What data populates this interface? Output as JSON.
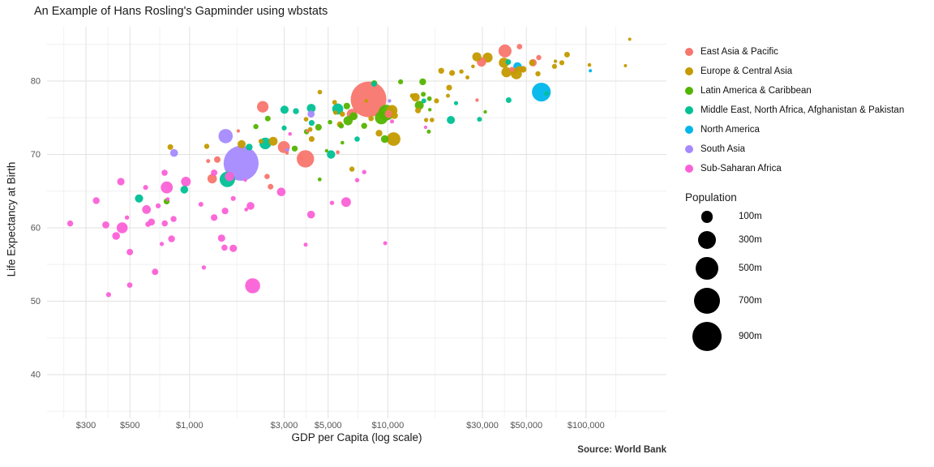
{
  "source": "Source: World Bank",
  "chart_data": {
    "type": "scatter",
    "title": "An Example of Hans Rosling's Gapminder using wbstats",
    "xlabel": "GDP per Capita (log scale)",
    "ylabel": "Life Expectancy at Birth",
    "x_scale": "log10",
    "x_range": [
      195,
      250000
    ],
    "y_range": [
      34,
      87
    ],
    "grid": "on",
    "legend_position": "right",
    "x_ticks": [
      {
        "value": 300,
        "label": "$300"
      },
      {
        "value": 500,
        "label": "$500"
      },
      {
        "value": 1000,
        "label": "$1,000"
      },
      {
        "value": 3000,
        "label": "$3,000"
      },
      {
        "value": 5000,
        "label": "$5,000"
      },
      {
        "value": 10000,
        "label": "$10,000"
      },
      {
        "value": 30000,
        "label": "$30,000"
      },
      {
        "value": 50000,
        "label": "$50,000"
      },
      {
        "value": 100000,
        "label": "$100,000"
      }
    ],
    "y_ticks": [
      {
        "value": 40,
        "label": "40"
      },
      {
        "value": 50,
        "label": "50"
      },
      {
        "value": 60,
        "label": "60"
      },
      {
        "value": 70,
        "label": "70"
      },
      {
        "value": 80,
        "label": "80"
      }
    ],
    "x_minor": [
      232,
      387,
      707,
      1732,
      3873,
      7071,
      17321,
      38730,
      70711,
      141254
    ],
    "y_minor": [
      35,
      45,
      55,
      65,
      75,
      85
    ],
    "regions": [
      {
        "label": "East Asia & Pacific",
        "color": "#F8766D"
      },
      {
        "label": "Europe & Central Asia",
        "color": "#C49A00"
      },
      {
        "label": "Latin America & Caribbean",
        "color": "#53B400"
      },
      {
        "label": "Middle East, North Africa, Afghanistan & Pakistan",
        "color": "#00C094"
      },
      {
        "label": "North America",
        "color": "#00B6EB"
      },
      {
        "label": "South Asia",
        "color": "#A58AFF"
      },
      {
        "label": "Sub-Saharan Africa",
        "color": "#FB61D7"
      }
    ],
    "size_legend": {
      "title": "Population",
      "entries": [
        {
          "value": 100,
          "label": "100m"
        },
        {
          "value": 300,
          "label": "300m"
        },
        {
          "value": 500,
          "label": "500m"
        },
        {
          "value": 700,
          "label": "700m"
        },
        {
          "value": 900,
          "label": "900m"
        }
      ]
    },
    "point_format": [
      "gdp_per_capita_usd",
      "life_expectancy_years",
      "population_millions",
      "region_index"
    ],
    "points": [
      [
        8000,
        77.5,
        1390,
        0
      ],
      [
        39000,
        84.1,
        127,
        0
      ],
      [
        3840,
        69.4,
        264,
        0
      ],
      [
        29700,
        82.6,
        51,
        0
      ],
      [
        2990,
        71,
        105,
        0
      ],
      [
        2340,
        76.5,
        95,
        0
      ],
      [
        6590,
        75.5,
        69,
        0
      ],
      [
        1300,
        66.7,
        53,
        0
      ],
      [
        10100,
        75.5,
        31,
        0
      ],
      [
        54000,
        82.5,
        24.6,
        0
      ],
      [
        57700,
        83.2,
        5.6,
        0
      ],
      [
        42300,
        81.6,
        4.8,
        0
      ],
      [
        1380,
        69.3,
        16,
        0
      ],
      [
        2460,
        67,
        6.9,
        0
      ],
      [
        3660,
        69.5,
        3.1,
        0
      ],
      [
        2560,
        65.6,
        8.6,
        0
      ],
      [
        5590,
        70.3,
        0.9,
        0
      ],
      [
        46200,
        84.7,
        7.4,
        0
      ],
      [
        28200,
        77.4,
        0.43,
        0
      ],
      [
        1240,
        69.1,
        1.3,
        0
      ],
      [
        3100,
        70.2,
        0.29,
        0
      ],
      [
        1760,
        73.2,
        0.2,
        0
      ],
      [
        3930,
        73.2,
        0.11,
        0
      ],
      [
        44500,
        81,
        82.7,
        1
      ],
      [
        39700,
        81.2,
        66,
        1
      ],
      [
        38500,
        82.5,
        67,
        1
      ],
      [
        31900,
        83.2,
        60.5,
        1
      ],
      [
        28100,
        83.3,
        46.6,
        1
      ],
      [
        10700,
        72.1,
        144.5,
        1
      ],
      [
        10500,
        76,
        80.7,
        1
      ],
      [
        13800,
        77.8,
        38,
        1
      ],
      [
        2640,
        71.8,
        44.8,
        1
      ],
      [
        48200,
        81.6,
        17.1,
        1
      ],
      [
        80200,
        83.6,
        8.5,
        1
      ],
      [
        75500,
        82.5,
        5.3,
        1
      ],
      [
        53400,
        82.5,
        10.1,
        1
      ],
      [
        47300,
        81.6,
        8.8,
        1
      ],
      [
        43300,
        81.4,
        11.4,
        1
      ],
      [
        18600,
        81.4,
        10.8,
        1
      ],
      [
        21100,
        81.1,
        10.3,
        1
      ],
      [
        20400,
        79.1,
        10.6,
        1
      ],
      [
        14200,
        76,
        9.8,
        1
      ],
      [
        10800,
        75.3,
        19.6,
        1
      ],
      [
        5730,
        74.1,
        9.5,
        1
      ],
      [
        9030,
        72.9,
        18,
        1
      ],
      [
        1830,
        71.4,
        32.4,
        1
      ],
      [
        4130,
        72.1,
        9.9,
        1
      ],
      [
        4060,
        73.4,
        3.7,
        1
      ],
      [
        3870,
        74.8,
        2.9,
        1
      ],
      [
        1220,
        71.1,
        6.2,
        1
      ],
      [
        800,
        71,
        8.9,
        1
      ],
      [
        6590,
        68,
        5.8,
        1
      ],
      [
        5900,
        75.5,
        7,
        1
      ],
      [
        8230,
        74.9,
        7.1,
        1
      ],
      [
        13300,
        78,
        4.1,
        1
      ],
      [
        57200,
        81,
        5.8,
        1
      ],
      [
        45700,
        81.7,
        5.5,
        1
      ],
      [
        69300,
        82,
        4.8,
        1
      ],
      [
        70100,
        82.7,
        0.34,
        1
      ],
      [
        104000,
        82.2,
        0.6,
        1
      ],
      [
        17600,
        77.3,
        5.4,
        1
      ],
      [
        23500,
        81.3,
        2.1,
        1
      ],
      [
        16700,
        74.7,
        2.8,
        1
      ],
      [
        15600,
        74.7,
        1.9,
        1
      ],
      [
        20100,
        78,
        1.3,
        1
      ],
      [
        4540,
        78.5,
        2.9,
        1
      ],
      [
        2290,
        71.8,
        3.5,
        1
      ],
      [
        5440,
        75.7,
        2.1,
        1
      ],
      [
        5390,
        77.1,
        3.5,
        1
      ],
      [
        7780,
        77.3,
        0.6,
        1
      ],
      [
        25200,
        80.5,
        1.2,
        1
      ],
      [
        26900,
        82,
        0.47,
        1
      ],
      [
        166000,
        85.7,
        0.04,
        1
      ],
      [
        158000,
        82.1,
        0.04,
        1
      ],
      [
        9820,
        75.7,
        209.3,
        2
      ],
      [
        9280,
        75,
        129.2,
        2
      ],
      [
        6300,
        74.6,
        49.1,
        2
      ],
      [
        14400,
        76.7,
        44.3,
        2
      ],
      [
        6710,
        75.2,
        32.2,
        2
      ],
      [
        15000,
        79.9,
        18.1,
        2
      ],
      [
        6210,
        76.6,
        16.6,
        2
      ],
      [
        4470,
        73.7,
        16.9,
        2
      ],
      [
        8540,
        79.7,
        11.5,
        2
      ],
      [
        3390,
        70.8,
        11.1,
        2
      ],
      [
        766,
        63.6,
        11,
        2
      ],
      [
        7600,
        73.9,
        10.8,
        2
      ],
      [
        2480,
        74.9,
        9.3,
        2
      ],
      [
        5820,
        73.9,
        6.8,
        2
      ],
      [
        2160,
        73.8,
        6.2,
        2
      ],
      [
        3890,
        73.1,
        6.4,
        2
      ],
      [
        11600,
        79.9,
        4.9,
        2
      ],
      [
        15100,
        78.2,
        4.1,
        2
      ],
      [
        16200,
        77.6,
        3.4,
        2
      ],
      [
        5110,
        74.4,
        2.9,
        2
      ],
      [
        16100,
        73.1,
        1.4,
        2
      ],
      [
        4530,
        66.6,
        0.78,
        2
      ],
      [
        5900,
        71.6,
        0.56,
        2
      ],
      [
        4910,
        70.5,
        0.37,
        2
      ],
      [
        16300,
        76.1,
        0.28,
        2
      ],
      [
        31000,
        75.8,
        0.39,
        2
      ],
      [
        9650,
        72.1,
        29.4,
        2
      ],
      [
        2410,
        71.5,
        97.5,
        3
      ],
      [
        5590,
        76.2,
        81.2,
        3
      ],
      [
        5170,
        70,
        38.3,
        3
      ],
      [
        20800,
        74.7,
        32.9,
        3
      ],
      [
        556,
        64,
        35.5,
        3
      ],
      [
        1550,
        66.6,
        197,
        3
      ],
      [
        3010,
        76.1,
        35.7,
        3
      ],
      [
        4110,
        76.3,
        41.3,
        3
      ],
      [
        940,
        65.2,
        28.2,
        3
      ],
      [
        4130,
        74.3,
        9.7,
        3
      ],
      [
        40500,
        82.6,
        8.7,
        3
      ],
      [
        40700,
        77.4,
        9.4,
        3
      ],
      [
        8520,
        79.6,
        6.8,
        3
      ],
      [
        15200,
        77.3,
        4.6,
        3
      ],
      [
        29000,
        74.8,
        4.1,
        3
      ],
      [
        63200,
        78.3,
        2.6,
        3
      ],
      [
        22100,
        77,
        1.5,
        3
      ],
      [
        3440,
        75.9,
        11.5,
        3
      ],
      [
        7000,
        72.1,
        6.4,
        3
      ],
      [
        3000,
        73.6,
        4.7,
        3
      ],
      [
        2000,
        71,
        18.3,
        3
      ],
      [
        59500,
        78.5,
        325.1,
        4
      ],
      [
        45100,
        82,
        36.7,
        4
      ],
      [
        105100,
        81.4,
        0.06,
        4
      ],
      [
        1820,
        68.8,
        1339,
        5
      ],
      [
        1520,
        72.5,
        164.7,
        5
      ],
      [
        4100,
        75.5,
        21.4,
        5
      ],
      [
        835,
        70.2,
        29.3,
        5
      ],
      [
        3110,
        70.6,
        0.81,
        5
      ],
      [
        10200,
        77.3,
        0.44,
        5
      ],
      [
        2080,
        52.1,
        190.9,
        6
      ],
      [
        767,
        65.5,
        105,
        6
      ],
      [
        457,
        60,
        81.3,
        6
      ],
      [
        958,
        66.3,
        57.3,
        6
      ],
      [
        6160,
        63.5,
        56.7,
        6
      ],
      [
        1590,
        67,
        49.7,
        6
      ],
      [
        606,
        62.5,
        42.9,
        6
      ],
      [
        2900,
        64.9,
        40.5,
        6
      ],
      [
        2030,
        63,
        28.8,
        6
      ],
      [
        4100,
        61.8,
        29.8,
        6
      ],
      [
        426,
        58.9,
        29.7,
        6
      ],
      [
        450,
        66.3,
        25.6,
        6
      ],
      [
        1450,
        58.6,
        24,
        6
      ],
      [
        1660,
        57.2,
        24.3,
        6
      ],
      [
        378,
        60.4,
        21.5,
        6
      ],
      [
        642,
        60.8,
        19.2,
        6
      ],
      [
        811,
        58.5,
        18.5,
        6
      ],
      [
        338,
        63.7,
        18.6,
        6
      ],
      [
        1510,
        62.3,
        17.1,
        6
      ],
      [
        1330,
        67.5,
        15.9,
        6
      ],
      [
        670,
        54,
        14.9,
        6
      ],
      [
        500,
        56.7,
        14.7,
        6
      ],
      [
        1330,
        61.4,
        16.5,
        6
      ],
      [
        749,
        60.6,
        12.7,
        6
      ],
      [
        748,
        67.5,
        12.2,
        6
      ],
      [
        830,
        61.2,
        11.2,
        6
      ],
      [
        250,
        60.6,
        10.9,
        6
      ],
      [
        1500,
        57.3,
        12.6,
        6
      ],
      [
        617,
        60.5,
        7.8,
        6
      ],
      [
        499,
        52.2,
        7.6,
        6
      ],
      [
        1660,
        64,
        5.3,
        6
      ],
      [
        694,
        63,
        4.7,
        6
      ],
      [
        390,
        50.9,
        4.7,
        6
      ],
      [
        1140,
        63.2,
        4.4,
        6
      ],
      [
        600,
        65.5,
        4.9,
        6
      ],
      [
        5230,
        63.4,
        2.5,
        6
      ],
      [
        7600,
        67.6,
        2.3,
        6
      ],
      [
        1180,
        54.6,
        2.2,
        6
      ],
      [
        483,
        61.4,
        2.1,
        6
      ],
      [
        7000,
        66.5,
        2,
        6
      ],
      [
        724,
        57.8,
        1.9,
        6
      ],
      [
        10500,
        74.5,
        1.3,
        6
      ],
      [
        3850,
        57.7,
        1.1,
        6
      ],
      [
        1930,
        62.5,
        0.96,
        6
      ],
      [
        775,
        63.9,
        0.81,
        6
      ],
      [
        9700,
        57.9,
        1.3,
        6
      ],
      [
        3210,
        72.8,
        0.55,
        6
      ],
      [
        15500,
        73.7,
        0.1,
        6
      ],
      [
        1910,
        66.5,
        0.2,
        6
      ]
    ]
  }
}
